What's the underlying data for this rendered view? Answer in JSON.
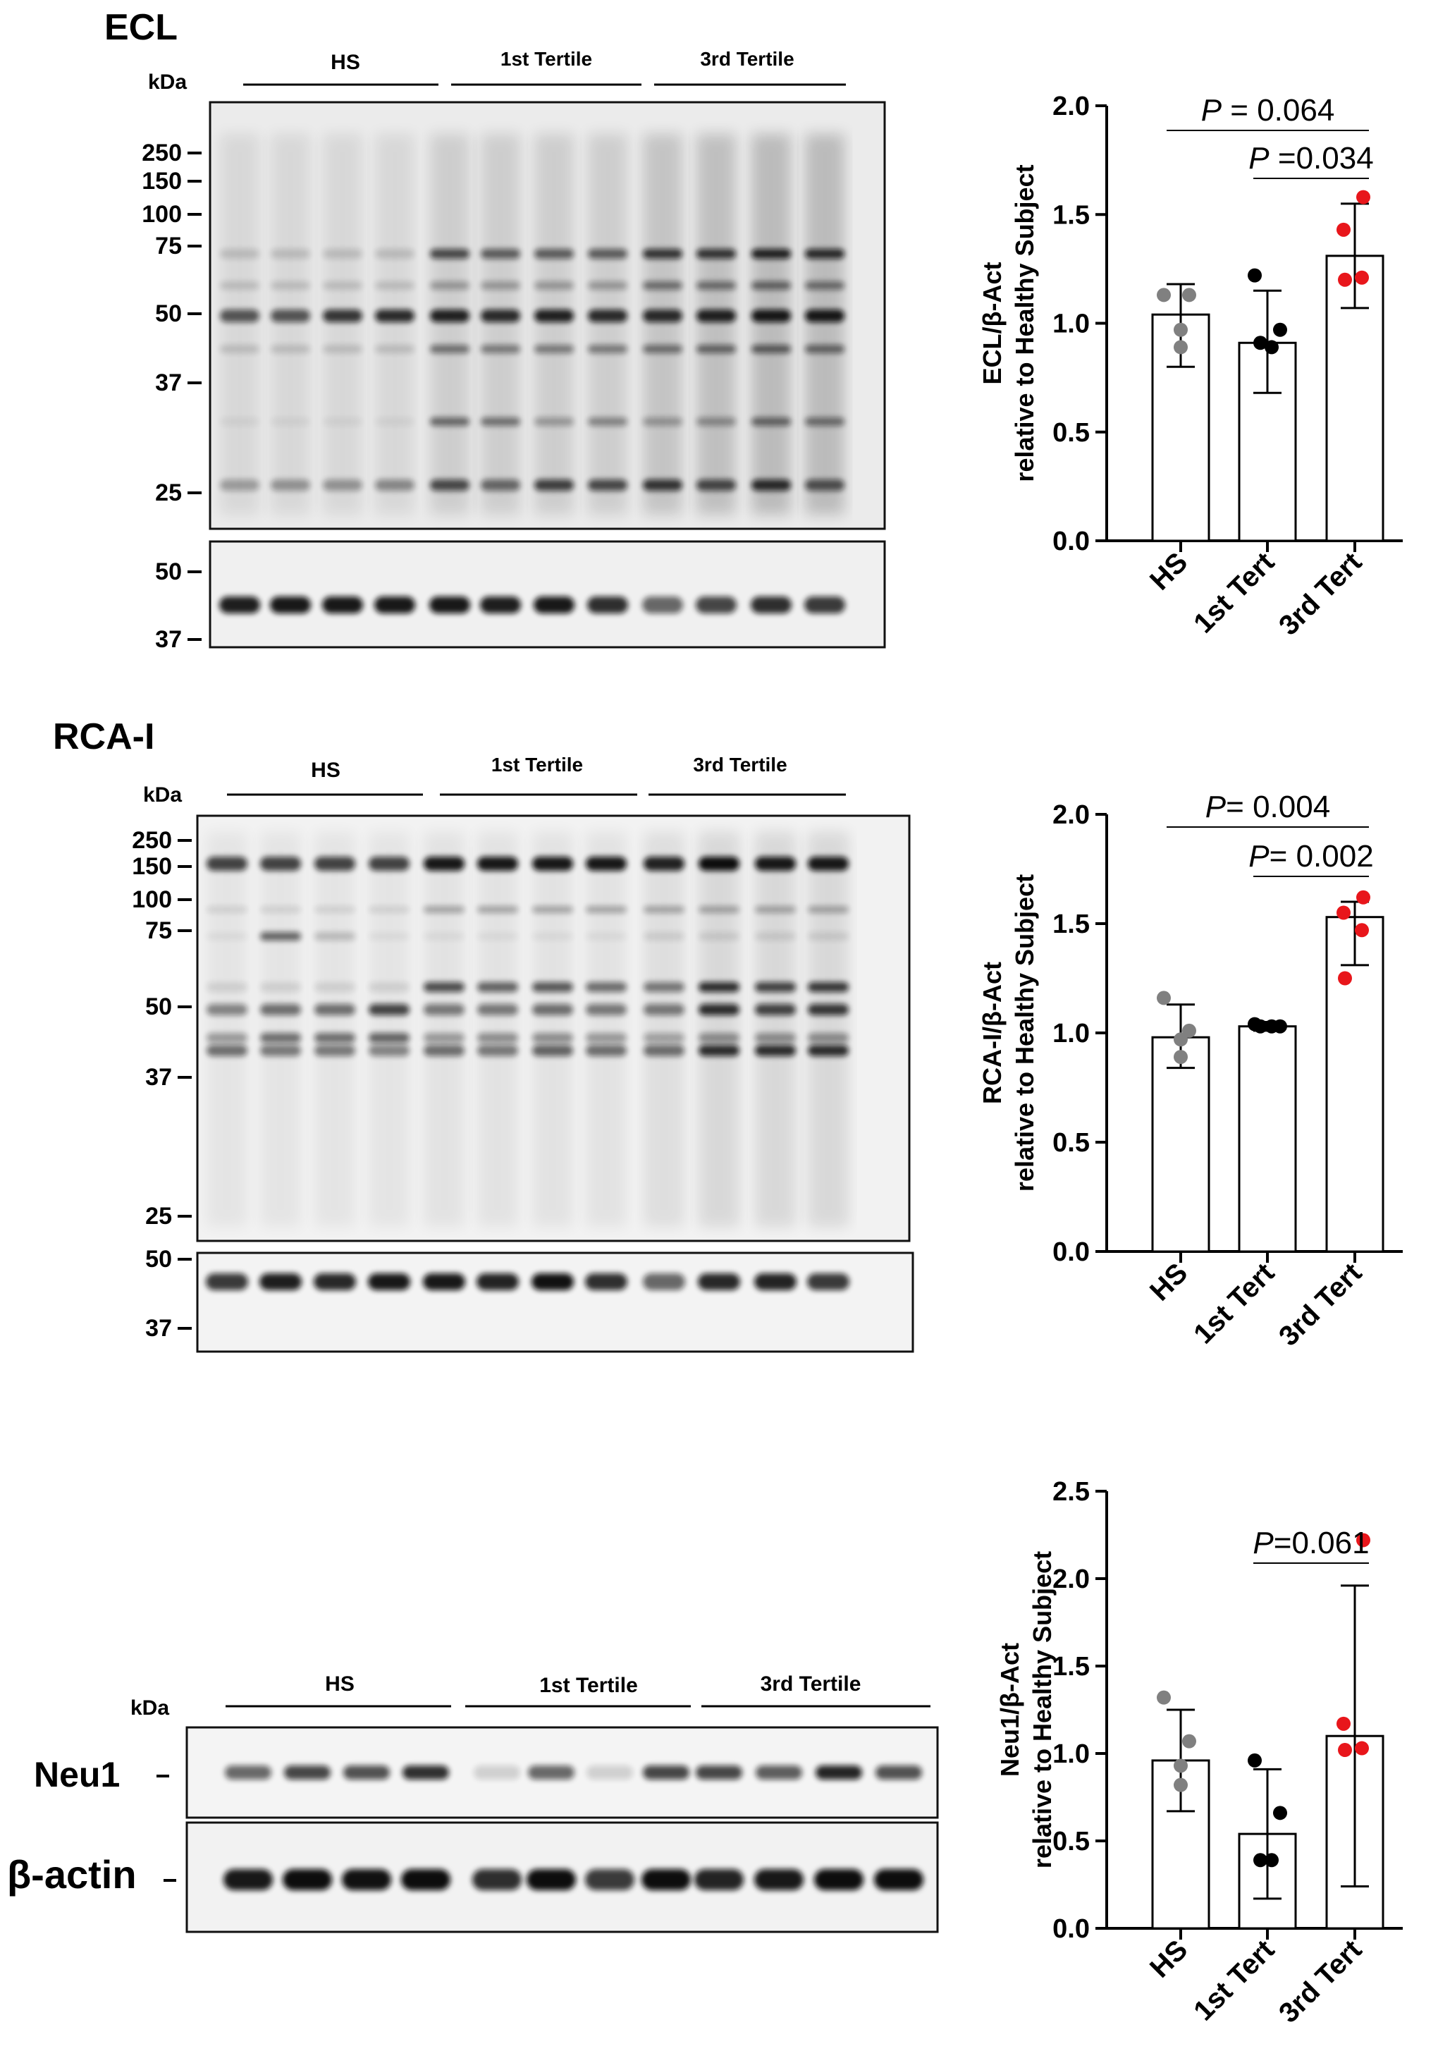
{
  "figure": {
    "panels": [
      {
        "id": "ecl",
        "title": "ECL",
        "kda_label": "kDa",
        "groups": [
          "HS",
          "1st Tertile",
          "3rd Tertile"
        ],
        "main_markers": [
          "250",
          "150",
          "100",
          "75",
          "50",
          "37",
          "25"
        ],
        "loading_markers": [
          "50",
          "37"
        ],
        "row_labels": []
      },
      {
        "id": "rca",
        "title": "RCA-I",
        "kda_label": "kDa",
        "groups": [
          "HS",
          "1st Tertile",
          "3rd Tertile"
        ],
        "main_markers": [
          "250",
          "150",
          "100",
          "75",
          "50",
          "37",
          "25"
        ],
        "loading_markers": [
          "50",
          "37"
        ],
        "row_labels": []
      },
      {
        "id": "neu1",
        "title": "",
        "kda_label": "kDa",
        "groups": [
          "HS",
          "1st Tertile",
          "3rd Tertile"
        ],
        "main_markers": [],
        "loading_markers": [],
        "row_labels": [
          "Neu1",
          "β-actin"
        ]
      }
    ],
    "colors": {
      "hs": "#808080",
      "tert1": "#000000",
      "tert3": "#e8161b",
      "blot_bg": "#ededed",
      "band": "#111111"
    }
  },
  "chart_data": [
    {
      "type": "bar",
      "categories": [
        "HS",
        "1st Tert",
        "3rd Tert"
      ],
      "values": [
        1.04,
        0.91,
        1.31
      ],
      "error": [
        [
          0.8,
          1.18
        ],
        [
          0.68,
          1.15
        ],
        [
          1.07,
          1.55
        ]
      ],
      "points": [
        [
          1.13,
          1.13,
          0.97,
          0.89
        ],
        [
          1.22,
          0.97,
          0.91,
          0.89
        ],
        [
          1.58,
          1.43,
          1.21,
          1.2
        ]
      ],
      "ylabel": "ECL/β-Act relative to Healthy  Subject",
      "ylim": [
        0,
        2.0
      ],
      "yticks": [
        "0.0",
        "0.5",
        "1.0",
        "1.5",
        "2.0"
      ],
      "comparisons": [
        {
          "from": 0,
          "to": 2,
          "label": "P = 0.064"
        },
        {
          "from": 1,
          "to": 2,
          "label": "P =0.034"
        }
      ]
    },
    {
      "type": "bar",
      "categories": [
        "HS",
        "1st Tert",
        "3rd Tert"
      ],
      "values": [
        0.98,
        1.03,
        1.53
      ],
      "error": [
        [
          0.84,
          1.13
        ],
        [
          1.01,
          1.05
        ],
        [
          1.31,
          1.6
        ]
      ],
      "points": [
        [
          1.16,
          1.01,
          0.97,
          0.89
        ],
        [
          1.04,
          1.03,
          1.03,
          1.03
        ],
        [
          1.62,
          1.55,
          1.47,
          1.25
        ]
      ],
      "ylabel": "RCA-I/β-Act relative to Healthy  Subject",
      "ylim": [
        0,
        2.0
      ],
      "yticks": [
        "0.0",
        "0.5",
        "1.0",
        "1.5",
        "2.0"
      ],
      "comparisons": [
        {
          "from": 0,
          "to": 2,
          "label": "P= 0.004"
        },
        {
          "from": 1,
          "to": 2,
          "label": "P= 0.002"
        }
      ]
    },
    {
      "type": "bar",
      "categories": [
        "HS",
        "1st Tert",
        "3rd Tert"
      ],
      "values": [
        0.96,
        0.54,
        1.1
      ],
      "error": [
        [
          0.67,
          1.25
        ],
        [
          0.17,
          0.91
        ],
        [
          0.24,
          1.96
        ]
      ],
      "points": [
        [
          1.32,
          1.07,
          0.93,
          0.82
        ],
        [
          0.96,
          0.66,
          0.39,
          0.39
        ],
        [
          2.22,
          1.17,
          1.03,
          1.02
        ]
      ],
      "ylabel": "Neu1/β-Act relative to Healthy Subject",
      "ylim": [
        0,
        2.5
      ],
      "yticks": [
        "0.0",
        "0.5",
        "1.0",
        "1.5",
        "2.0",
        "2.5"
      ],
      "comparisons": [
        {
          "from": 1,
          "to": 2,
          "label": "P=0.061"
        }
      ]
    }
  ]
}
